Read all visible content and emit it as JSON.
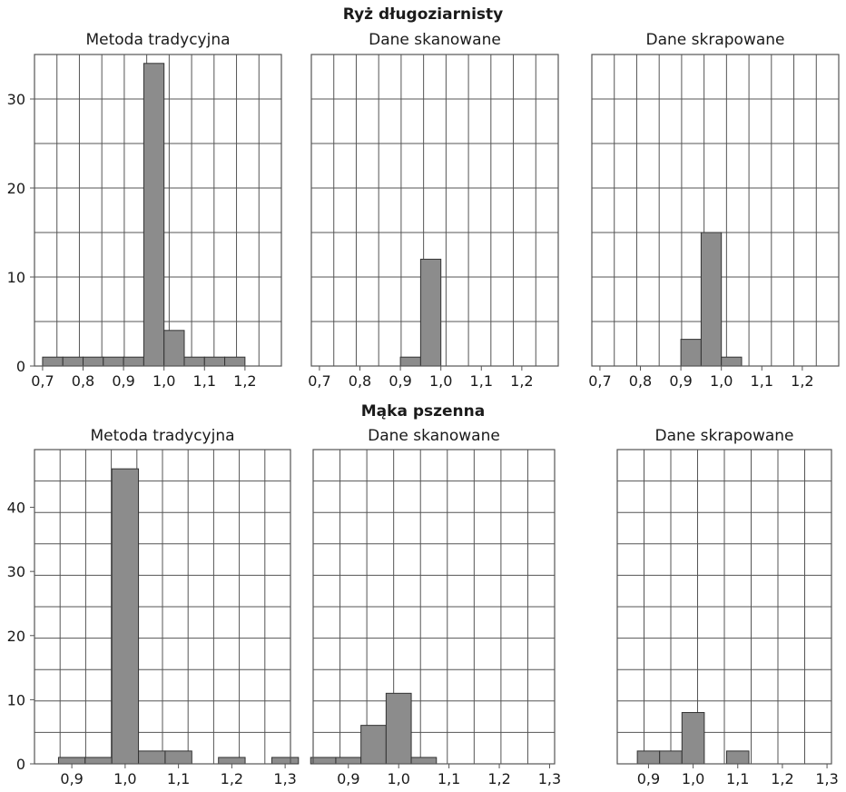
{
  "group_titles": [
    "Ryż długoziarnisty",
    "Mąka pszenna"
  ],
  "chart_data": [
    {
      "type": "bar",
      "group": 0,
      "title": "Metoda tradycyjna",
      "xlim": [
        0.68,
        1.29
      ],
      "ylim": [
        0,
        35
      ],
      "xticks": [
        0.7,
        0.8,
        0.9,
        1.0,
        1.1,
        1.2
      ],
      "xtick_labels": [
        "0,7",
        "0,8",
        "0,9",
        "1,0",
        "1,1",
        "1,2"
      ],
      "yticks": [
        0,
        10,
        20,
        30
      ],
      "ytick_labels": [
        "0",
        "10",
        "20",
        "30"
      ],
      "bins": [
        {
          "x0": 0.7,
          "x1": 0.75,
          "value": 1
        },
        {
          "x0": 0.75,
          "x1": 0.8,
          "value": 1
        },
        {
          "x0": 0.8,
          "x1": 0.85,
          "value": 1
        },
        {
          "x0": 0.85,
          "x1": 0.9,
          "value": 1
        },
        {
          "x0": 0.9,
          "x1": 0.95,
          "value": 1
        },
        {
          "x0": 0.95,
          "x1": 1.0,
          "value": 34
        },
        {
          "x0": 1.0,
          "x1": 1.05,
          "value": 4
        },
        {
          "x0": 1.05,
          "x1": 1.1,
          "value": 1
        },
        {
          "x0": 1.1,
          "x1": 1.15,
          "value": 1
        },
        {
          "x0": 1.15,
          "x1": 1.2,
          "value": 1
        }
      ]
    },
    {
      "type": "bar",
      "group": 0,
      "title": "Dane skanowane",
      "xlim": [
        0.68,
        1.29
      ],
      "ylim": [
        0,
        35
      ],
      "xticks": [
        0.7,
        0.8,
        0.9,
        1.0,
        1.1,
        1.2
      ],
      "xtick_labels": [
        "0,7",
        "0,8",
        "0,9",
        "1,0",
        "1,1",
        "1,2"
      ],
      "yticks": [],
      "ytick_labels": [],
      "bins": [
        {
          "x0": 0.9,
          "x1": 0.95,
          "value": 1
        },
        {
          "x0": 0.95,
          "x1": 1.0,
          "value": 12
        }
      ]
    },
    {
      "type": "bar",
      "group": 0,
      "title": "Dane skrapowane",
      "xlim": [
        0.68,
        1.29
      ],
      "ylim": [
        0,
        35
      ],
      "xticks": [
        0.7,
        0.8,
        0.9,
        1.0,
        1.1,
        1.2
      ],
      "xtick_labels": [
        "0,7",
        "0,8",
        "0,9",
        "1,0",
        "1,1",
        "1,2"
      ],
      "yticks": [],
      "ytick_labels": [],
      "bins": [
        {
          "x0": 0.9,
          "x1": 0.95,
          "value": 3
        },
        {
          "x0": 0.95,
          "x1": 1.0,
          "value": 15
        },
        {
          "x0": 1.0,
          "x1": 1.05,
          "value": 1
        }
      ]
    },
    {
      "type": "bar",
      "group": 1,
      "title": "Metoda tradycyjna",
      "xlim": [
        0.83,
        1.31
      ],
      "ylim": [
        0,
        49
      ],
      "xticks": [
        0.9,
        1.0,
        1.1,
        1.2,
        1.3
      ],
      "xtick_labels": [
        "0,9",
        "1,0",
        "1,1",
        "1,2",
        "1,3"
      ],
      "yticks": [
        0,
        10,
        20,
        30,
        40
      ],
      "ytick_labels": [
        "0",
        "10",
        "20",
        "30",
        "40"
      ],
      "bins": [
        {
          "x0": 0.875,
          "x1": 0.925,
          "value": 1
        },
        {
          "x0": 0.925,
          "x1": 0.975,
          "value": 1
        },
        {
          "x0": 0.975,
          "x1": 1.025,
          "value": 46
        },
        {
          "x0": 1.025,
          "x1": 1.075,
          "value": 2
        },
        {
          "x0": 1.075,
          "x1": 1.125,
          "value": 2
        },
        {
          "x0": 1.175,
          "x1": 1.225,
          "value": 1
        },
        {
          "x0": 1.275,
          "x1": 1.325,
          "value": 1
        }
      ]
    },
    {
      "type": "bar",
      "group": 1,
      "title": "Dane skanowane",
      "xlim": [
        0.83,
        1.31
      ],
      "ylim": [
        0,
        49
      ],
      "xticks": [
        0.9,
        1.0,
        1.1,
        1.2,
        1.3
      ],
      "xtick_labels": [
        "0,9",
        "1,0",
        "1,1",
        "1,2",
        "1,3"
      ],
      "yticks": [],
      "ytick_labels": [],
      "bins": [
        {
          "x0": 0.825,
          "x1": 0.875,
          "value": 1
        },
        {
          "x0": 0.875,
          "x1": 0.925,
          "value": 1
        },
        {
          "x0": 0.925,
          "x1": 0.975,
          "value": 6
        },
        {
          "x0": 0.975,
          "x1": 1.025,
          "value": 11
        },
        {
          "x0": 1.025,
          "x1": 1.075,
          "value": 1
        }
      ]
    },
    {
      "type": "bar",
      "group": 1,
      "title": "Dane skrapowane",
      "xlim": [
        0.83,
        1.31
      ],
      "ylim": [
        0,
        49
      ],
      "xticks": [
        0.9,
        1.0,
        1.1,
        1.2,
        1.3
      ],
      "xtick_labels": [
        "0,9",
        "1,0",
        "1,1",
        "1,2",
        "1,3"
      ],
      "yticks": [],
      "ytick_labels": [],
      "bins": [
        {
          "x0": 0.875,
          "x1": 0.925,
          "value": 2
        },
        {
          "x0": 0.925,
          "x1": 0.975,
          "value": 2
        },
        {
          "x0": 0.975,
          "x1": 1.025,
          "value": 8
        },
        {
          "x0": 1.075,
          "x1": 1.125,
          "value": 2
        }
      ]
    }
  ],
  "colors": {
    "bar_fill": "#8c8c8c",
    "bar_stroke": "#333333",
    "grid": "#555555",
    "frame": "#555555"
  }
}
